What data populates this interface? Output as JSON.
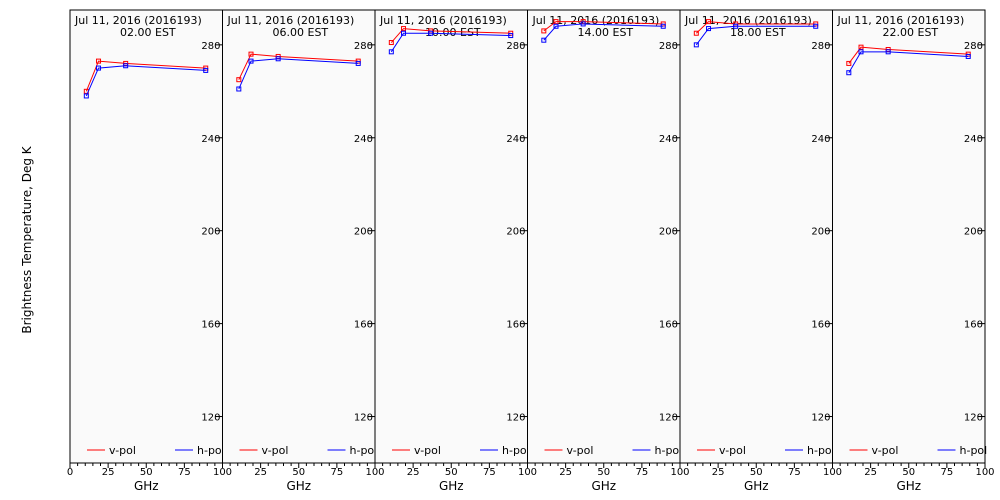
{
  "ylabel": "Brightness Temperature, Deg K",
  "xlabel": "GHz",
  "chart_data": {
    "type": "line",
    "ylabel": "Brightness Temperature, Deg K",
    "xlabel": "GHz",
    "xlim": [
      0,
      100
    ],
    "ylim": [
      100,
      295
    ],
    "yticks": [
      120,
      160,
      200,
      240,
      280
    ],
    "xticks": [
      0,
      25,
      50,
      75,
      100
    ],
    "xtick_labels": [
      "0",
      "25",
      "50",
      "75",
      "100"
    ],
    "grid": false,
    "legend_placement": "bottom",
    "colors": {
      "v-pol": "#ff0000",
      "h-pol": "#0000ff",
      "panel_bg": "#fafafa"
    },
    "legend": [
      "v-pol",
      "h-pol"
    ],
    "panels": [
      {
        "title_line1": "Jul 11, 2016 (2016193)",
        "title_line2": "02.00 EST",
        "series": [
          {
            "name": "v-pol",
            "x": [
              10.7,
              18.7,
              36.5,
              89.0
            ],
            "y": [
              260,
              273,
              272,
              270
            ]
          },
          {
            "name": "h-pol",
            "x": [
              10.7,
              18.7,
              36.5,
              89.0
            ],
            "y": [
              258,
              270,
              271,
              269
            ]
          }
        ]
      },
      {
        "title_line1": "Jul 11, 2016 (2016193)",
        "title_line2": "06.00 EST",
        "series": [
          {
            "name": "v-pol",
            "x": [
              10.7,
              18.7,
              36.5,
              89.0
            ],
            "y": [
              265,
              276,
              275,
              273
            ]
          },
          {
            "name": "h-pol",
            "x": [
              10.7,
              18.7,
              36.5,
              89.0
            ],
            "y": [
              261,
              273,
              274,
              272
            ]
          }
        ]
      },
      {
        "title_line1": "Jul 11, 2016 (2016193)",
        "title_line2": "10.00 EST",
        "series": [
          {
            "name": "v-pol",
            "x": [
              10.7,
              18.7,
              36.5,
              89.0
            ],
            "y": [
              281,
              287,
              286,
              285
            ]
          },
          {
            "name": "h-pol",
            "x": [
              10.7,
              18.7,
              36.5,
              89.0
            ],
            "y": [
              277,
              285,
              285,
              284
            ]
          }
        ]
      },
      {
        "title_line1": "Jul 11, 2016 (2016193)",
        "title_line2": "14.00 EST",
        "series": [
          {
            "name": "v-pol",
            "x": [
              10.7,
              18.7,
              36.5,
              89.0
            ],
            "y": [
              286,
              290,
              290,
              289
            ]
          },
          {
            "name": "h-pol",
            "x": [
              10.7,
              18.7,
              36.5,
              89.0
            ],
            "y": [
              282,
              288,
              289,
              288
            ]
          }
        ]
      },
      {
        "title_line1": "Jul 11, 2016 (2016193)",
        "title_line2": "18.00 EST",
        "series": [
          {
            "name": "v-pol",
            "x": [
              10.7,
              18.7,
              36.5,
              89.0
            ],
            "y": [
              285,
              290,
              289,
              289
            ]
          },
          {
            "name": "h-pol",
            "x": [
              10.7,
              18.7,
              36.5,
              89.0
            ],
            "y": [
              280,
              287,
              288,
              288
            ]
          }
        ]
      },
      {
        "title_line1": "Jul 11, 2016 (2016193)",
        "title_line2": "22.00 EST",
        "series": [
          {
            "name": "v-pol",
            "x": [
              10.7,
              18.7,
              36.5,
              89.0
            ],
            "y": [
              272,
              279,
              278,
              276
            ]
          },
          {
            "name": "h-pol",
            "x": [
              10.7,
              18.7,
              36.5,
              89.0
            ],
            "y": [
              268,
              277,
              277,
              275
            ]
          }
        ]
      }
    ]
  }
}
